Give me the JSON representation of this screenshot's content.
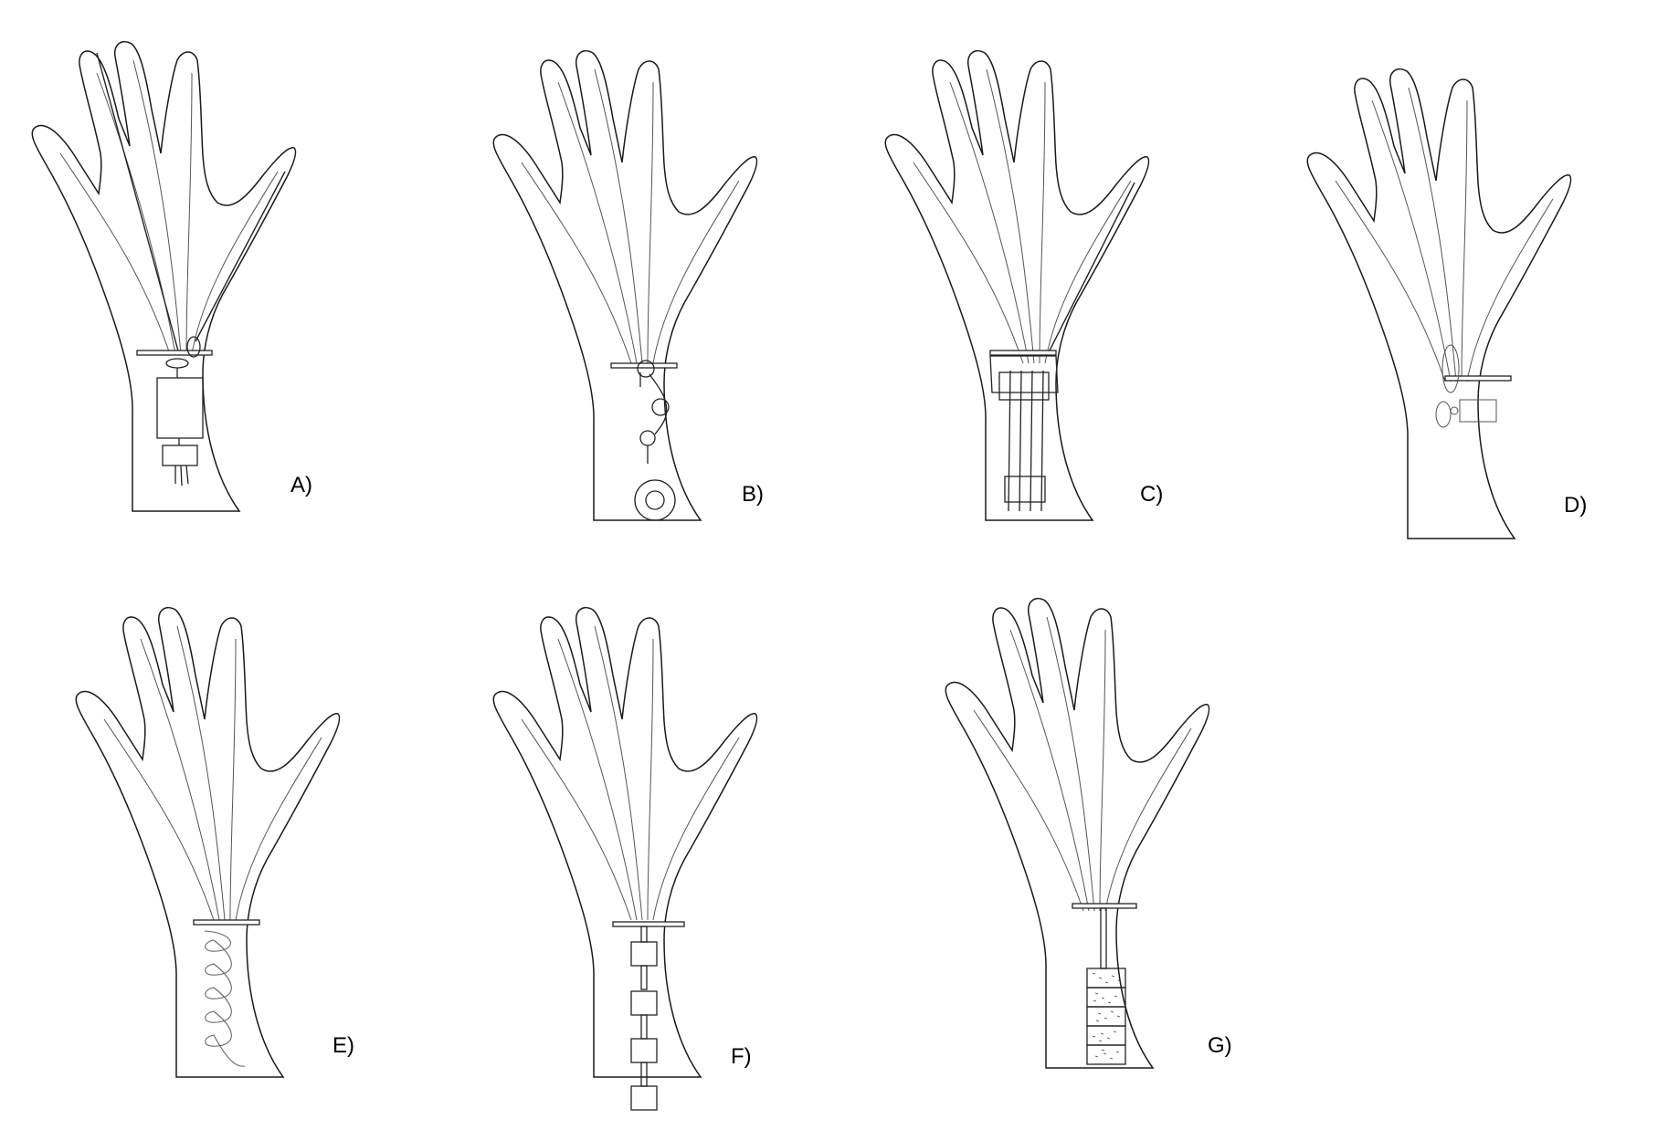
{
  "figure": {
    "panels": [
      {
        "id": "A",
        "label": "A)",
        "mechanism": "cables-to-box-and-module"
      },
      {
        "id": "B",
        "label": "B)",
        "mechanism": "cable-through-pulleys-to-spool"
      },
      {
        "id": "C",
        "label": "C)",
        "mechanism": "parallel-cables-over-forearm-blocks"
      },
      {
        "id": "D",
        "label": "D)",
        "mechanism": "wristband-with-side-actuator"
      },
      {
        "id": "E",
        "label": "E)",
        "mechanism": "coil-spring"
      },
      {
        "id": "F",
        "label": "F)",
        "mechanism": "chain-of-blocks"
      },
      {
        "id": "G",
        "label": "G)",
        "mechanism": "stacked-textured-blocks"
      }
    ],
    "colors": {
      "outline": "#1a1a1a",
      "tendon": "#555555",
      "device": "#222222",
      "background": "#ffffff"
    }
  }
}
